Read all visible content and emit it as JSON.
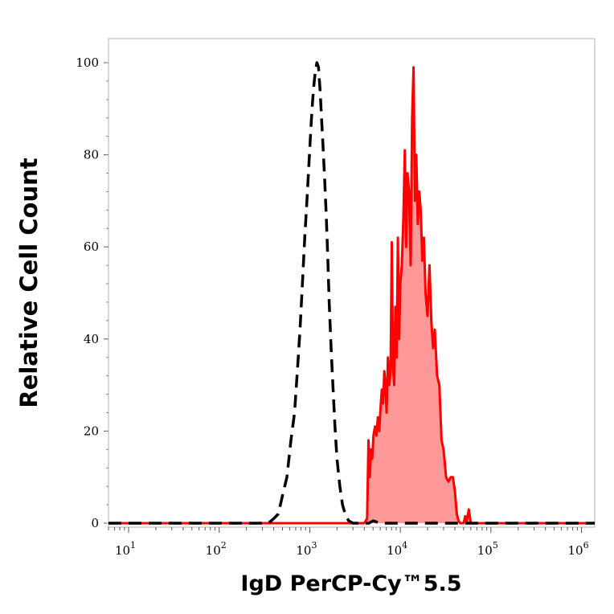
{
  "chart_data": {
    "type": "area",
    "xlabel": "IgD PerCP-Cy™5.5",
    "ylabel": "Relative Cell Count",
    "x_scale": "log",
    "xlim": [
      6,
      1400000
    ],
    "ylim": [
      0,
      100
    ],
    "yticks": [
      0,
      20,
      40,
      60,
      80,
      100
    ],
    "xticks": [
      {
        "base": "10",
        "exp": "1",
        "value": 10
      },
      {
        "base": "10",
        "exp": "2",
        "value": 100
      },
      {
        "base": "10",
        "exp": "3",
        "value": 1000
      },
      {
        "base": "10",
        "exp": "4",
        "value": 10000
      },
      {
        "base": "10",
        "exp": "5",
        "value": 100000
      },
      {
        "base": "10",
        "exp": "6",
        "value": 1000000
      }
    ],
    "grid": false,
    "series": [
      {
        "style": "dashed",
        "color": "#000000",
        "fill": "none",
        "points": [
          [
            6,
            0
          ],
          [
            100,
            0
          ],
          [
            350,
            0
          ],
          [
            400,
            1
          ],
          [
            450,
            2
          ],
          [
            500,
            6
          ],
          [
            560,
            10
          ],
          [
            620,
            18
          ],
          [
            680,
            24
          ],
          [
            730,
            33
          ],
          [
            780,
            42
          ],
          [
            830,
            52
          ],
          [
            880,
            62
          ],
          [
            930,
            70
          ],
          [
            980,
            78
          ],
          [
            1030,
            86
          ],
          [
            1070,
            91
          ],
          [
            1110,
            95
          ],
          [
            1150,
            98
          ],
          [
            1200,
            100
          ],
          [
            1250,
            99
          ],
          [
            1300,
            94
          ],
          [
            1350,
            88
          ],
          [
            1400,
            82
          ],
          [
            1460,
            75
          ],
          [
            1520,
            67
          ],
          [
            1580,
            58
          ],
          [
            1640,
            48
          ],
          [
            1720,
            38
          ],
          [
            1800,
            30
          ],
          [
            1900,
            21
          ],
          [
            2000,
            14
          ],
          [
            2150,
            8
          ],
          [
            2300,
            4
          ],
          [
            2500,
            1.5
          ],
          [
            2700,
            0.5
          ],
          [
            3000,
            0
          ],
          [
            4500,
            0
          ],
          [
            5000,
            0.5
          ],
          [
            6000,
            0
          ],
          [
            1400000,
            0
          ]
        ]
      },
      {
        "style": "solid",
        "color": "#ff0000",
        "fill": "#ff9999",
        "points": [
          [
            6,
            0
          ],
          [
            4000,
            0
          ],
          [
            4300,
            1
          ],
          [
            4450,
            18
          ],
          [
            4600,
            10
          ],
          [
            4750,
            16
          ],
          [
            4900,
            14
          ],
          [
            5050,
            19
          ],
          [
            5250,
            21
          ],
          [
            5450,
            19
          ],
          [
            5650,
            23
          ],
          [
            5850,
            20
          ],
          [
            6050,
            25
          ],
          [
            6250,
            29
          ],
          [
            6450,
            26
          ],
          [
            6650,
            33
          ],
          [
            6850,
            30
          ],
          [
            7050,
            24
          ],
          [
            7300,
            36
          ],
          [
            7550,
            30
          ],
          [
            7800,
            33
          ],
          [
            8050,
            61
          ],
          [
            8300,
            34
          ],
          [
            8550,
            30
          ],
          [
            8800,
            47
          ],
          [
            9100,
            36
          ],
          [
            9400,
            62
          ],
          [
            9700,
            40
          ],
          [
            10000,
            52
          ],
          [
            10400,
            56
          ],
          [
            10800,
            66
          ],
          [
            11200,
            81
          ],
          [
            11600,
            60
          ],
          [
            12000,
            76
          ],
          [
            12500,
            72
          ],
          [
            13000,
            56
          ],
          [
            13500,
            88
          ],
          [
            14000,
            99
          ],
          [
            14500,
            70
          ],
          [
            15000,
            80
          ],
          [
            15600,
            65
          ],
          [
            16200,
            72
          ],
          [
            16800,
            68
          ],
          [
            17500,
            57
          ],
          [
            18200,
            62
          ],
          [
            19000,
            50
          ],
          [
            20000,
            45
          ],
          [
            21000,
            56
          ],
          [
            22000,
            44
          ],
          [
            23000,
            38
          ],
          [
            24000,
            42
          ],
          [
            25500,
            32
          ],
          [
            27000,
            30
          ],
          [
            28500,
            18
          ],
          [
            30000,
            16
          ],
          [
            32000,
            10
          ],
          [
            34000,
            9
          ],
          [
            36000,
            10
          ],
          [
            38000,
            10
          ],
          [
            40000,
            7
          ],
          [
            42000,
            2
          ],
          [
            44000,
            0.5
          ],
          [
            46000,
            0
          ],
          [
            50000,
            0
          ],
          [
            52000,
            1.5
          ],
          [
            54000,
            0.5
          ],
          [
            57000,
            3
          ],
          [
            60000,
            0
          ],
          [
            1400000,
            0
          ]
        ]
      }
    ]
  }
}
